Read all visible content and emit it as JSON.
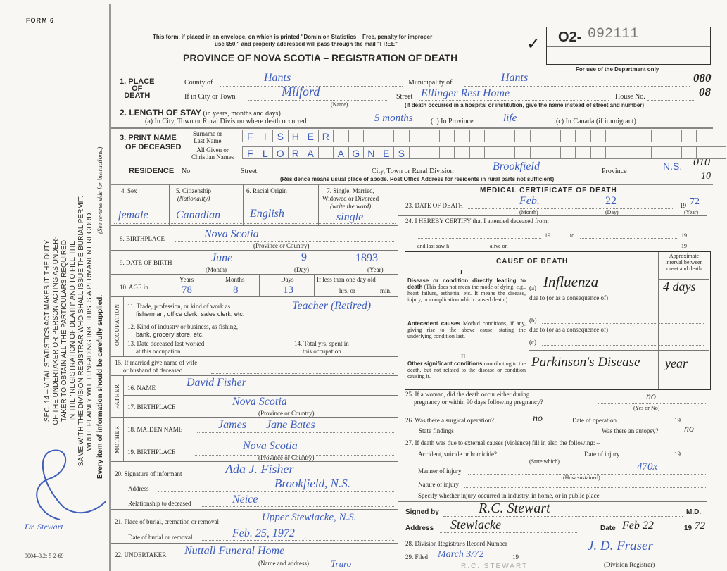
{
  "form_id": "FORM 6",
  "header": {
    "notice_line1": "This form, if placed in an envelope, on which is printed \"Dominion Statistics – Free, penalty for improper",
    "notice_line2": "use $50,\" and properly addressed will pass through the mail \"FREE\"",
    "title": "PROVINCE OF NOVA SCOTIA – REGISTRATION OF DEATH",
    "check_mark": "✓",
    "reg_prefix": "O2-",
    "reg_number": "092111",
    "dept_only": "For use of the Department only",
    "code1": "080",
    "code2": "08",
    "code3": "010",
    "code4": "10"
  },
  "margin": {
    "sec14_lines": [
      "SEC. 14 – VITAL STATISTICS ACT MAKES IT THE DUTY",
      "OF THE UNDERTAKER OR PERSON ACTING AS UNDER-",
      "TAKER TO OBTAIN ALL THE PARTICULARS REQUIRED",
      "IN THE \"REGISTRATION OF DEATH\" AND TO FILE THE",
      "SAME WITH THE DIVISION REGISTRAR WHO SHALL ISSUE THE BURIAL PERMIT.",
      "WRITE PLAINLY WITH UNFADING INK. THIS IS A PERMANENT RECORD."
    ],
    "every_item": "Every item of information should be carefully supplied.",
    "see_reverse": "(See reverse side for instructions.)",
    "signature_note": "Dr. Stewart",
    "print_code": "9004–3.2: 5-2-69"
  },
  "place_of_death": {
    "label_num": "1. PLACE",
    "label_of": "OF",
    "label_death": "DEATH",
    "county_label": "County of",
    "county": "Hants",
    "municipality_label": "Municipality of",
    "municipality": "Hants",
    "city_label": "If in City or Town",
    "city": "Milford",
    "name_hint": "(Name)",
    "street_label": "Street",
    "street": "Ellinger Rest Home",
    "house_label": "House No.",
    "hospital_note": "(If death occurred in a hospital or institution, give the name instead of street and number)"
  },
  "length_of_stay": {
    "label": "2. LENGTH OF STAY",
    "hint": "(in years, months and days)",
    "a_label": "(a) In City, Town or Rural Division where death occurred",
    "a_value": "5 months",
    "b_label": "(b) In Province",
    "b_value": "life",
    "c_label": "(c) In Canada (if immigrant)"
  },
  "name": {
    "label1": "3. PRINT NAME",
    "label2": "OF DECEASED",
    "surname_label1": "Surname or",
    "surname_label2": "Last Name",
    "given_label1": "All Given or",
    "given_label2": "Christian Names",
    "surname_letters": [
      "F",
      "I",
      "S",
      "H",
      "E",
      "R",
      "",
      "",
      "",
      "",
      "",
      "",
      "",
      "",
      "",
      "",
      "",
      "",
      "",
      "",
      "",
      "",
      "",
      "",
      "",
      "",
      "",
      "",
      "",
      "",
      "",
      ""
    ],
    "given_letters": [
      "F",
      "L",
      "O",
      "R",
      "A",
      "",
      "A",
      "G",
      "N",
      "E",
      "S",
      "",
      "",
      "",
      "",
      "",
      "",
      "",
      "",
      "",
      "",
      "",
      "",
      "",
      "",
      "",
      "",
      "",
      "",
      "",
      "",
      ""
    ]
  },
  "residence": {
    "label": "RESIDENCE",
    "no_label": "No.",
    "street_label": "Street",
    "city_label": "City, Town or Rural Division",
    "city": "Brookfield",
    "province_label": "Province",
    "province": "N.S.",
    "note": "(Residence means usual place of abode. Post Office Address for residents in rural parts not sufficient)"
  },
  "personal": {
    "sex_label": "4. Sex",
    "sex": "female",
    "citizenship_label": "5. Citizenship",
    "citizenship_hint": "(Nationality)",
    "citizenship": "Canadian",
    "racial_label": "6. Racial Origin",
    "racial": "English",
    "marital_label1": "7. Single, Married,",
    "marital_label2": "Widowed or Divorced",
    "marital_hint": "(write the word)",
    "marital": "single",
    "birthplace_label": "8. BIRTHPLACE",
    "birthplace": "Nova Scotia",
    "birthplace_hint": "(Province or Country)",
    "dob_label": "9. DATE OF BIRTH",
    "dob_month": "June",
    "dob_day": "9",
    "dob_year": "1893",
    "month_hint": "(Month)",
    "day_hint": "(Day)",
    "year_hint": "(Year)",
    "age_label": "10. AGE in",
    "years_label": "Years",
    "years": "78",
    "months_label": "Months",
    "months": "8",
    "days_label": "Days",
    "days": "13",
    "less_day_label": "If less than one day old",
    "hrs_label": "hrs. or",
    "min_label": "min."
  },
  "occupation": {
    "side_label": "OCCUPATION",
    "q11a": "11. Trade, profession, or kind of work as",
    "q11b": "fisherman, office clerk, sales clerk, etc.",
    "trade": "Teacher (Retired)",
    "q12a": "12. Kind of industry or business, as fishing,",
    "q12b": "bank, grocery store, etc.",
    "q13a": "13. Date deceased last worked",
    "q13b": "at this occupation",
    "q14a": "14. Total yrs. spent in",
    "q14b": "this occupation"
  },
  "spouse": {
    "q15a": "15. If married give name of wife",
    "q15b": "or husband of deceased"
  },
  "father": {
    "side_label": "FATHER",
    "name_label": "16. NAME",
    "name": "David Fisher",
    "birthplace_label": "17. BIRTHPLACE",
    "birthplace": "Nova Scotia",
    "hint": "(Province or Country)"
  },
  "mother": {
    "side_label": "MOTHER",
    "maiden_label": "18. MAIDEN NAME",
    "maiden_struck": "James",
    "maiden": "Jane Bates",
    "birthplace_label": "19. BIRTHPLACE",
    "birthplace": "Nova Scotia",
    "hint": "(Province or Country)"
  },
  "informant": {
    "sig_label": "20. Signature of informant",
    "signature": "Ada J. Fisher",
    "address_label": "Address",
    "address": "Brookfield, N.S.",
    "rel_label": "Relationship to deceased",
    "relationship": "Neice"
  },
  "burial": {
    "place_label": "21. Place of burial, cremation or removal",
    "place": "Upper Stewiacke, N.S.",
    "date_label": "Date of burial or removal",
    "date": "Feb. 25, 1972"
  },
  "undertaker": {
    "label": "22. UNDERTAKER",
    "value": "Nuttall Funeral Home",
    "value2": "Truro",
    "hint": "(Name and address)"
  },
  "medical": {
    "title": "MEDICAL CERTIFICATE OF DEATH",
    "q23": "23. DATE OF DEATH",
    "death_month": "Feb.",
    "death_day": "22",
    "year_prefix": "19",
    "death_year": "72",
    "month_hint": "(Month)",
    "day_hint": "(Day)",
    "year_hint": "(Year)",
    "q24": "24. I HEREBY CERTIFY that I attended deceased from:",
    "nineteen": "19",
    "to": "to",
    "last_saw": "and last saw h",
    "alive_on": "alive on",
    "cause_title": "CAUSE OF DEATH",
    "interval_label": "Approximate interval between onset and death",
    "part1": "I",
    "disease_bold": "Disease or condition directly leading to death",
    "disease_text": "(This does not mean the mode of dying, e.g., heart failure, asthenia, etc. It means the disease, injury, or complication which caused death.)",
    "a_label": "(a)",
    "cause_a": "Influenza",
    "interval_a": "4 days",
    "due_to": "due to (or as a consequence of)",
    "antecedent_bold": "Antecedent causes",
    "antecedent_text": "Morbid conditions, if any, giving rise to the above cause, stating the underlying condition last.",
    "b_label": "(b)",
    "c_label": "(c)",
    "part2": "II",
    "other_bold": "Other significant conditions",
    "other_text": "contributing to the death, but not related to the disease or condition causing it.",
    "other_cause": "Parkinson's Disease",
    "other_interval": "year",
    "q25a": "25. If a woman, did the death occur either during",
    "q25b": "pregnancy or within 90 days following pregnancy?",
    "q25_answer": "no",
    "yes_no_hint": "(Yes or No)",
    "q26": "26. Was there a surgical operation?",
    "q26_answer": "no",
    "op_date_label": "Date of operation",
    "findings_label": "State findings",
    "autopsy_label": "Was there an autopsy?",
    "autopsy_answer": "no",
    "q27": "27. If death was due to external causes (violence) fill in also the following: –",
    "accident_label": "Accident, suicide or homicide?",
    "state_which": "(State which)",
    "injury_date_label": "Date of injury",
    "manner_label": "Manner of injury",
    "manner_code": "470x",
    "how_sustained": "(How sustained)",
    "nature_label": "Nature of injury",
    "specify_label": "Specify whether injury occurred in industry, in home, or in public place",
    "signed_label": "Signed by",
    "signed": "R.C. Stewart",
    "md": "M.D.",
    "address_label": "Address",
    "address": "Stewiacke",
    "date_label": "Date",
    "date": "Feb 22",
    "date_year": "72",
    "q28": "28. Division Registrar's Record Number",
    "q29": "29. Filed",
    "filed": "March 3/72",
    "registrar_sig": "J. D. Fraser",
    "registrar_hint": "(Division Registrar)",
    "stamp": "R.C. STEWART"
  }
}
